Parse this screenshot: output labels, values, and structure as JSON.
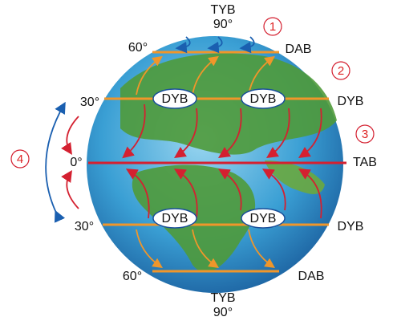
{
  "north": {
    "pole": "TYB",
    "pole_degree": "90°",
    "lat60": "60°",
    "lat60_belt": "DAB",
    "lat30": "30°",
    "lat30_belt_inner_1": "DYB",
    "lat30_belt_inner_2": "DYB",
    "lat30_belt": "DYB"
  },
  "equator": {
    "degree": "0°",
    "belt": "TAB"
  },
  "south": {
    "lat30": "30°",
    "lat30_belt_inner_1": "DYB",
    "lat30_belt_inner_2": "DYB",
    "lat30_belt": "DYB",
    "lat60": "60°",
    "lat60_belt": "DAB",
    "pole": "TYB",
    "pole_degree": "90°"
  },
  "markers": [
    "1",
    "2",
    "3",
    "4"
  ]
}
